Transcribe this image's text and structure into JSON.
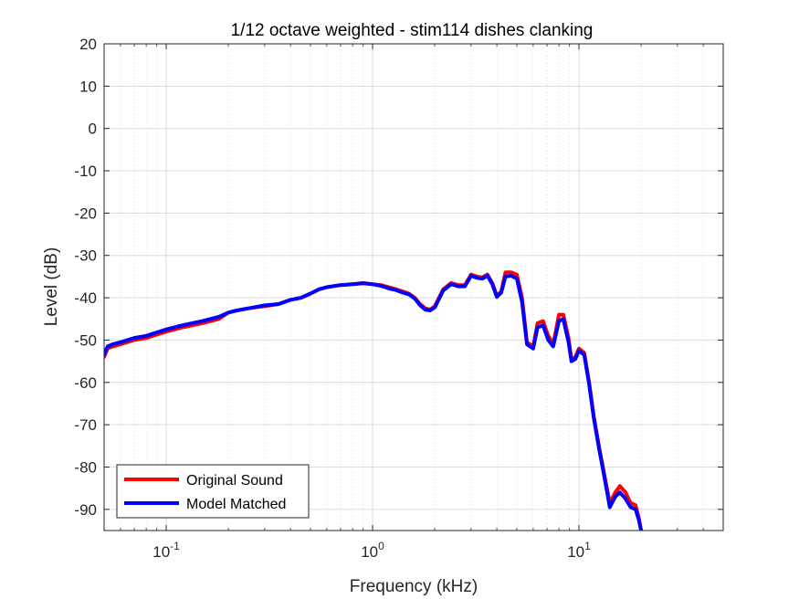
{
  "chart_data": {
    "type": "line",
    "title": "1/12 octave weighted - stim114 dishes clanking",
    "xlabel": "Frequency (kHz)",
    "ylabel": "Level (dB)",
    "x_scale": "log",
    "xlim": [
      0.05,
      50
    ],
    "ylim": [
      -95,
      20
    ],
    "grid": true,
    "minor_grid": true,
    "legend_position": "bottom-left",
    "x_ticks": [
      {
        "value": 0.1,
        "base": "10",
        "exp": "-1"
      },
      {
        "value": 1,
        "base": "10",
        "exp": "0"
      },
      {
        "value": 10,
        "base": "10",
        "exp": "1"
      }
    ],
    "y_ticks": [
      20,
      10,
      0,
      -10,
      -20,
      -30,
      -40,
      -50,
      -60,
      -70,
      -80,
      -90
    ],
    "series": [
      {
        "name": "Original Sound",
        "color": "#ff0000",
        "x": [
          0.05,
          0.052,
          0.055,
          0.06,
          0.07,
          0.08,
          0.1,
          0.12,
          0.15,
          0.18,
          0.2,
          0.22,
          0.25,
          0.3,
          0.35,
          0.4,
          0.45,
          0.5,
          0.55,
          0.6,
          0.7,
          0.8,
          0.9,
          1.0,
          1.1,
          1.2,
          1.3,
          1.4,
          1.5,
          1.6,
          1.7,
          1.8,
          1.9,
          2.0,
          2.2,
          2.4,
          2.6,
          2.8,
          3.0,
          3.2,
          3.4,
          3.6,
          3.8,
          4.0,
          4.2,
          4.4,
          4.7,
          5.0,
          5.3,
          5.6,
          6.0,
          6.3,
          6.7,
          7.1,
          7.5,
          8.0,
          8.4,
          8.9,
          9.2,
          9.6,
          10.0,
          10.6,
          11.2,
          11.8,
          12.5,
          13.3,
          14.1,
          15.0,
          15.8,
          16.8,
          17.8,
          18.8,
          19.5,
          20.0
        ],
        "values": [
          -54,
          -52,
          -51.5,
          -51,
          -50,
          -49.5,
          -48,
          -47,
          -46,
          -45,
          -43.5,
          -43,
          -42.5,
          -42,
          -41.5,
          -40.5,
          -40,
          -39,
          -38,
          -37.5,
          -37,
          -36.8,
          -36.5,
          -36.8,
          -37,
          -37.5,
          -38,
          -38.5,
          -39,
          -40,
          -41.5,
          -42.5,
          -42.8,
          -42,
          -38,
          -36.5,
          -37,
          -37,
          -34.5,
          -35,
          -35.2,
          -34.5,
          -36.5,
          -39.5,
          -38.5,
          -34,
          -34,
          -34.5,
          -40,
          -50.5,
          -51.5,
          -46,
          -45.5,
          -49,
          -51,
          -44,
          -44,
          -49.5,
          -54.5,
          -54,
          -52,
          -53,
          -60,
          -68,
          -75,
          -82,
          -88.5,
          -86,
          -84.5,
          -86,
          -88.5,
          -89,
          -92,
          -95
        ]
      },
      {
        "name": "Model Matched",
        "color": "#0000ff",
        "x": [
          0.05,
          0.052,
          0.055,
          0.06,
          0.07,
          0.08,
          0.1,
          0.12,
          0.15,
          0.18,
          0.2,
          0.22,
          0.25,
          0.3,
          0.35,
          0.4,
          0.45,
          0.5,
          0.55,
          0.6,
          0.7,
          0.8,
          0.9,
          1.0,
          1.1,
          1.2,
          1.3,
          1.4,
          1.5,
          1.6,
          1.7,
          1.8,
          1.9,
          2.0,
          2.2,
          2.4,
          2.6,
          2.8,
          3.0,
          3.2,
          3.4,
          3.6,
          3.8,
          4.0,
          4.2,
          4.4,
          4.7,
          5.0,
          5.3,
          5.6,
          6.0,
          6.3,
          6.7,
          7.1,
          7.5,
          8.0,
          8.4,
          8.9,
          9.2,
          9.6,
          10.0,
          10.6,
          11.2,
          11.8,
          12.5,
          13.3,
          14.1,
          15.0,
          15.8,
          16.8,
          17.8,
          18.8,
          19.5,
          20.0
        ],
        "values": [
          -53.5,
          -51.5,
          -51,
          -50.5,
          -49.5,
          -49,
          -47.5,
          -46.5,
          -45.5,
          -44.5,
          -43.5,
          -43,
          -42.5,
          -41.8,
          -41.5,
          -40.5,
          -40,
          -39,
          -38,
          -37.5,
          -37,
          -36.8,
          -36.6,
          -36.8,
          -37.2,
          -37.8,
          -38.2,
          -38.8,
          -39.2,
          -40.2,
          -41.8,
          -42.8,
          -43,
          -42.3,
          -38.3,
          -36.8,
          -37.3,
          -37.3,
          -34.8,
          -35.3,
          -35.5,
          -34.8,
          -36.8,
          -39.8,
          -38.8,
          -35,
          -34.8,
          -35.5,
          -41,
          -51,
          -52,
          -47,
          -46.5,
          -50,
          -51.5,
          -45.5,
          -45,
          -50.5,
          -55,
          -54.5,
          -52.5,
          -53.5,
          -60.5,
          -68.5,
          -75.5,
          -82.5,
          -89.5,
          -87,
          -86,
          -87.5,
          -89.5,
          -90,
          -92.5,
          -95
        ]
      }
    ]
  }
}
